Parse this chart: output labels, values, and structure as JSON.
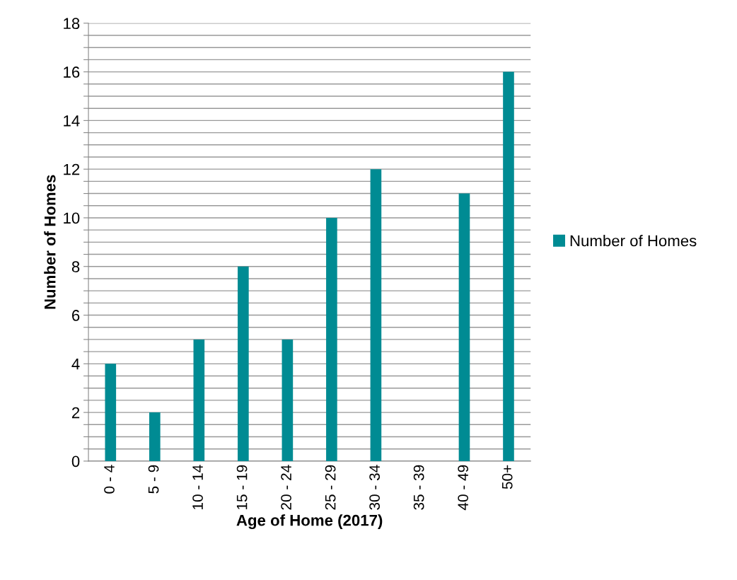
{
  "chart_data": {
    "type": "bar",
    "xlabel": "Age of Home (2017)",
    "ylabel": "Number of Homes",
    "categories": [
      "0 - 4",
      "5 - 9",
      "10 - 14",
      "15 - 19",
      "20 - 24",
      "25 - 29",
      "30 - 34",
      "35 - 39",
      "40 - 49",
      "50+"
    ],
    "series": [
      {
        "name": "Number of Homes",
        "color": "#008b93",
        "values": [
          4,
          2,
          5,
          8,
          5,
          10,
          12,
          0,
          11,
          16
        ]
      }
    ],
    "ylim": [
      0,
      18
    ],
    "yticks": [
      0,
      {
        "value": 0.5,
        "label": null
      },
      {
        "value": 1,
        "label": null
      },
      {
        "value": 1.5,
        "label": null
      },
      2,
      {
        "value": 2.5,
        "label": null
      },
      {
        "value": 3,
        "label": null
      },
      {
        "value": 3.5,
        "label": null
      },
      4,
      {
        "value": 4.5,
        "label": null
      },
      {
        "value": 5,
        "label": null
      },
      {
        "value": 5.5,
        "label": null
      },
      6,
      {
        "value": 6.5,
        "label": null
      },
      {
        "value": 7,
        "label": null
      },
      {
        "value": 7.5,
        "label": null
      },
      8,
      {
        "value": 8.5,
        "label": null
      },
      {
        "value": 9,
        "label": null
      },
      {
        "value": 9.5,
        "label": null
      },
      10,
      {
        "value": 10.5,
        "label": null
      },
      {
        "value": 11,
        "label": null
      },
      {
        "value": 11.5,
        "label": null
      },
      12,
      {
        "value": 12.5,
        "label": null
      },
      {
        "value": 13,
        "label": null
      },
      {
        "value": 13.5,
        "label": null
      },
      14,
      {
        "value": 14.5,
        "label": null
      },
      {
        "value": 15,
        "label": null
      },
      {
        "value": 15.5,
        "label": null
      },
      16,
      {
        "value": 16.5,
        "label": null
      },
      {
        "value": 17,
        "label": null
      },
      {
        "value": 17.5,
        "label": null
      },
      18
    ],
    "grid": "y",
    "legend": "right"
  }
}
